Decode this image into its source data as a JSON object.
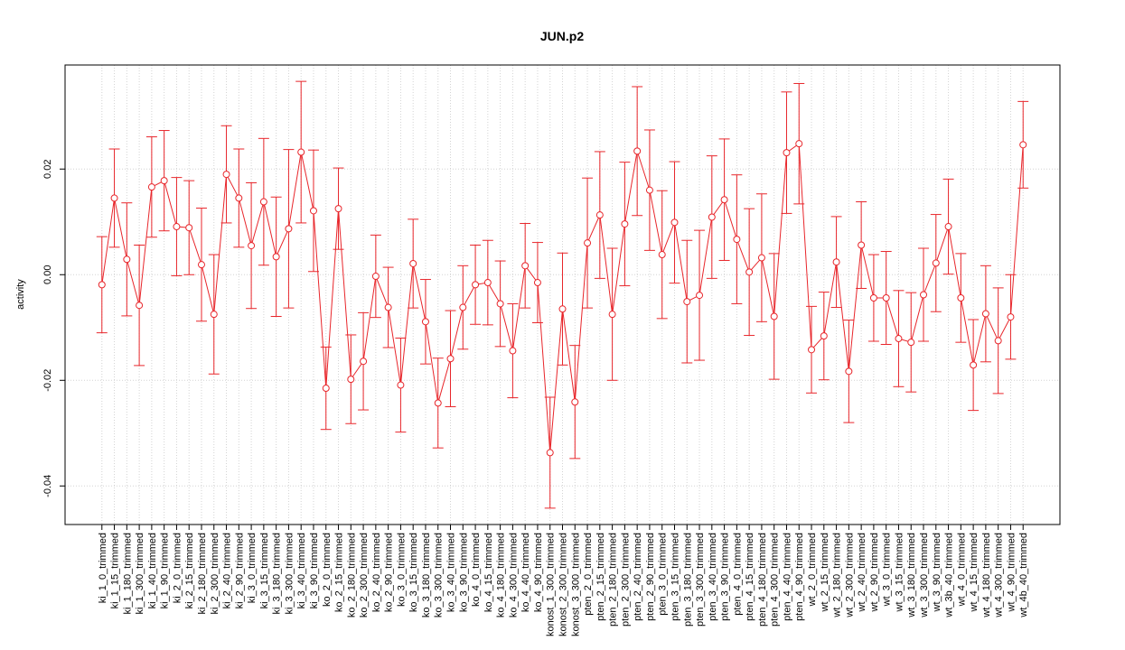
{
  "chart_data": {
    "type": "line",
    "title": "JUN.p2",
    "ylabel": "activity",
    "categories": [
      "ki_1_0_trimmed",
      "ki_1_15_trimmed",
      "ki_1_180_trimmed",
      "ki_1_300_trimmed",
      "ki_1_40_trimmed",
      "ki_1_90_trimmed",
      "ki_2_0_trimmed",
      "ki_2_15_trimmed",
      "ki_2_180_trimmed",
      "ki_2_300_trimmed",
      "ki_2_40_trimmed",
      "ki_2_90_trimmed",
      "ki_3_0_trimmed",
      "ki_3_15_trimmed",
      "ki_3_180_trimmed",
      "ki_3_300_trimmed",
      "ki_3_40_trimmed",
      "ki_3_90_trimmed",
      "ko_2_0_trimmed",
      "ko_2_15_trimmed",
      "ko_2_180_trimmed",
      "ko_2_300_trimmed",
      "ko_2_40_trimmed",
      "ko_2_90_trimmed",
      "ko_3_0_trimmed",
      "ko_3_15_trimmed",
      "ko_3_180_trimmed",
      "ko_3_300_trimmed",
      "ko_3_40_trimmed",
      "ko_3_90_trimmed",
      "ko_4_0_trimmed",
      "ko_4_15_trimmed",
      "ko_4_180_trimmed",
      "ko_4_300_trimmed",
      "ko_4_40_trimmed",
      "ko_4_90_trimmed",
      "konost_1_300_trimmed",
      "konost_2_300_trimmed",
      "konost_3_300_trimmed",
      "pten_2_0_trimmed",
      "pten_2_15_trimmed",
      "pten_2_180_trimmed",
      "pten_2_300_trimmed",
      "pten_2_40_trimmed",
      "pten_2_90_trimmed",
      "pten_3_0_trimmed",
      "pten_3_15_trimmed",
      "pten_3_180_trimmed",
      "pten_3_300_trimmed",
      "pten_3_40_trimmed",
      "pten_3_90_trimmed",
      "pten_4_0_trimmed",
      "pten_4_15_trimmed",
      "pten_4_180_trimmed",
      "pten_4_300_trimmed",
      "pten_4_40_trimmed",
      "pten_4_90_trimmed",
      "wt_2_0_trimmed",
      "wt_2_15_trimmed",
      "wt_2_180_trimmed",
      "wt_2_300_trimmed",
      "wt_2_40_trimmed",
      "wt_2_90_trimmed",
      "wt_3_0_trimmed",
      "wt_3_15_trimmed",
      "wt_3_180_trimmed",
      "wt_3_300_trimmed",
      "wt_3_90_trimmed",
      "wt_3b_40_trimmed",
      "wt_4_0_trimmed",
      "wt_4_15_trimmed",
      "wt_4_180_trimmed",
      "wt_4_300_trimmed",
      "wt_4_90_trimmed",
      "wt_4b_40_trimmed"
    ],
    "values": [
      -0.0019,
      0.0145,
      0.0029,
      -0.0058,
      0.0166,
      0.0178,
      0.0091,
      0.0089,
      0.0019,
      -0.0075,
      0.019,
      0.0145,
      0.0055,
      0.0138,
      0.0034,
      0.0087,
      0.0232,
      0.0121,
      -0.0215,
      0.0125,
      -0.0198,
      -0.0164,
      -0.0003,
      -0.0062,
      -0.0209,
      0.0021,
      -0.0089,
      -0.0243,
      -0.0159,
      -0.0062,
      -0.0019,
      -0.0015,
      -0.0055,
      -0.0144,
      0.0017,
      -0.0015,
      -0.0337,
      -0.0065,
      -0.0241,
      0.006,
      0.0113,
      -0.0075,
      0.0096,
      0.0234,
      0.016,
      0.0038,
      0.0099,
      -0.0051,
      -0.0039,
      0.0109,
      0.0142,
      0.0067,
      0.0005,
      0.0032,
      -0.0079,
      0.0231,
      0.0248,
      -0.0142,
      -0.0116,
      0.0024,
      -0.0183,
      0.0056,
      -0.0044,
      -0.0044,
      -0.0121,
      -0.0128,
      -0.0038,
      0.0022,
      0.0091,
      -0.0044,
      -0.0171,
      -0.0074,
      -0.0125,
      -0.008,
      0.0246
    ],
    "errors": [
      0.0091,
      0.0093,
      0.0107,
      0.0114,
      0.0095,
      0.0095,
      0.0093,
      0.0089,
      0.0107,
      0.0113,
      0.0092,
      0.0093,
      0.0119,
      0.012,
      0.0113,
      0.015,
      0.0134,
      0.0115,
      0.0078,
      0.0077,
      0.0084,
      0.0092,
      0.0078,
      0.0076,
      0.0089,
      0.0084,
      0.008,
      0.0085,
      0.0091,
      0.0079,
      0.0075,
      0.008,
      0.0081,
      0.0089,
      0.008,
      0.0076,
      0.0105,
      0.0106,
      0.0107,
      0.0123,
      0.012,
      0.0125,
      0.0117,
      0.0122,
      0.0114,
      0.0121,
      0.0115,
      0.0116,
      0.0123,
      0.0116,
      0.0115,
      0.0122,
      0.012,
      0.0121,
      0.0119,
      0.0115,
      0.0114,
      0.0082,
      0.0083,
      0.0086,
      0.0097,
      0.0082,
      0.0082,
      0.0088,
      0.0091,
      0.0094,
      0.0088,
      0.0092,
      0.009,
      0.0084,
      0.0086,
      0.0091,
      0.01,
      0.008,
      0.0082
    ],
    "color": "#e8262b",
    "ylim": [
      -0.0473,
      0.0397
    ],
    "yticks": [
      -0.04,
      -0.02,
      {
        "value": 0,
        "label": "0.00"
      },
      0.02
    ],
    "grid": true
  }
}
